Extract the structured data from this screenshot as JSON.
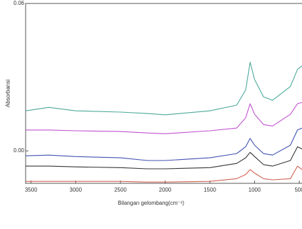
{
  "chart_data": {
    "type": "line",
    "xlabel": "Bilangan gelombang(cm⁻¹)",
    "ylabel": "Absorbansi",
    "x": [
      3560,
      3300,
      3000,
      2500,
      2200,
      2000,
      1500,
      1200,
      1100,
      1050,
      1000,
      900,
      800,
      600,
      520,
      470
    ],
    "xlim": [
      3560,
      470
    ],
    "xticks": [
      3500,
      3000,
      2500,
      2000,
      1500,
      1000,
      500
    ],
    "ylim": [
      -0.0132,
      0.06
    ],
    "yticks": [
      {
        "value": 0,
        "label": "0.00"
      },
      {
        "value": 0.06,
        "label": "0.06"
      }
    ],
    "series": [
      {
        "color": "#4aa89a",
        "values": [
          0.0163,
          0.0177,
          0.0163,
          0.0158,
          0.0152,
          0.0147,
          0.0163,
          0.0186,
          0.0248,
          0.0361,
          0.029,
          0.022,
          0.0206,
          0.0262,
          0.0332,
          0.0346
        ]
      },
      {
        "color": "#c050d0",
        "values": [
          0.0085,
          0.0085,
          0.0082,
          0.0079,
          0.0073,
          0.007,
          0.0082,
          0.0093,
          0.0135,
          0.0192,
          0.0149,
          0.0107,
          0.0101,
          0.0149,
          0.0192,
          0.0197
        ]
      },
      {
        "color": "#4050b0",
        "values": [
          -0.002,
          -0.0017,
          -0.0023,
          -0.0028,
          -0.0039,
          -0.0039,
          -0.0028,
          -0.0011,
          0.0017,
          0.0051,
          0.0023,
          -0.0011,
          -0.0017,
          0.0023,
          0.0085,
          0.0093
        ]
      },
      {
        "color": "#333333",
        "values": [
          -0.0062,
          -0.0062,
          -0.0065,
          -0.0068,
          -0.0073,
          -0.0073,
          -0.0068,
          -0.0051,
          -0.0028,
          -0.0006,
          -0.0023,
          -0.0056,
          -0.0062,
          -0.0039,
          0.0017,
          0.0008
        ]
      },
      {
        "color": "#d06050",
        "values": [
          -0.0124,
          -0.0124,
          -0.0124,
          -0.0124,
          -0.0127,
          -0.0127,
          -0.0124,
          -0.0113,
          -0.0096,
          -0.0076,
          -0.009,
          -0.0113,
          -0.0118,
          -0.0113,
          -0.0062,
          -0.0076
        ]
      }
    ]
  }
}
